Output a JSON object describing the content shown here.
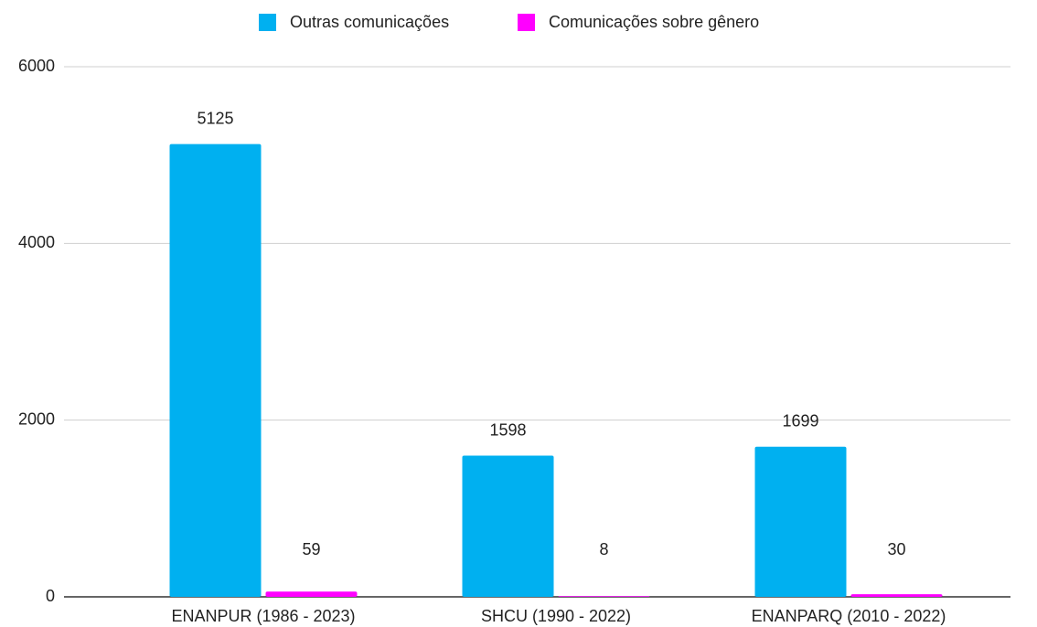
{
  "chart_data": {
    "type": "bar",
    "categories": [
      "ENANPUR (1986 - 2023)",
      "SHCU (1990 - 2022)",
      "ENANPARQ (2010 - 2022)"
    ],
    "series": [
      {
        "name": "Outras comunicações",
        "color": "#00b0f0",
        "values": [
          5125,
          1598,
          1699
        ]
      },
      {
        "name": "Comunicações sobre gênero",
        "color": "#ff00ff",
        "values": [
          59,
          8,
          30
        ]
      }
    ],
    "ylim": [
      0,
      6000
    ],
    "yticks": [
      0,
      2000,
      4000,
      6000
    ],
    "grid": true,
    "legend": "top"
  }
}
